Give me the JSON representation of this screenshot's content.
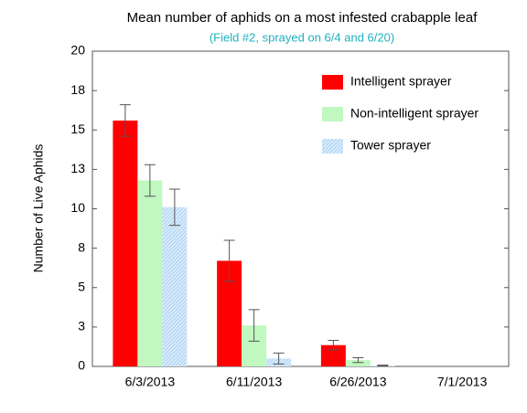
{
  "chart_data": {
    "type": "bar",
    "title": "Mean number of aphids on a most infested crabapple leaf",
    "subtitle": "(Field #2, sprayed on 6/4 and 6/20)",
    "y_label": "Number of Live Aphids",
    "categories": [
      "6/3/2013",
      "6/11/2013",
      "6/26/2013",
      "7/1/2013"
    ],
    "series": [
      {
        "name": "Intelligent sprayer",
        "color": "#ff0000",
        "values": [
          15.6,
          6.7,
          1.35,
          0
        ],
        "errors": [
          1.0,
          1.3,
          0.3,
          0
        ]
      },
      {
        "name": "Non-intelligent sprayer",
        "color": "#c0f8c0",
        "values": [
          11.8,
          2.6,
          0.4,
          0
        ],
        "errors": [
          1.0,
          1.0,
          0.15,
          0
        ]
      },
      {
        "name": "Tower sprayer",
        "color": "#d8ecfc",
        "pattern": "hatch",
        "values": [
          10.1,
          0.5,
          0.05,
          0
        ],
        "errors": [
          1.15,
          0.35,
          0.03,
          0
        ]
      }
    ],
    "ylim": [
      0,
      20
    ],
    "yticks": [
      0,
      {
        "value": 2.5,
        "label": "3"
      },
      5,
      {
        "value": 7.5,
        "label": "8"
      },
      10,
      {
        "value": 12.5,
        "label": "13"
      },
      15,
      {
        "value": 17.5,
        "label": "18"
      },
      20
    ],
    "legend": "upper right"
  }
}
